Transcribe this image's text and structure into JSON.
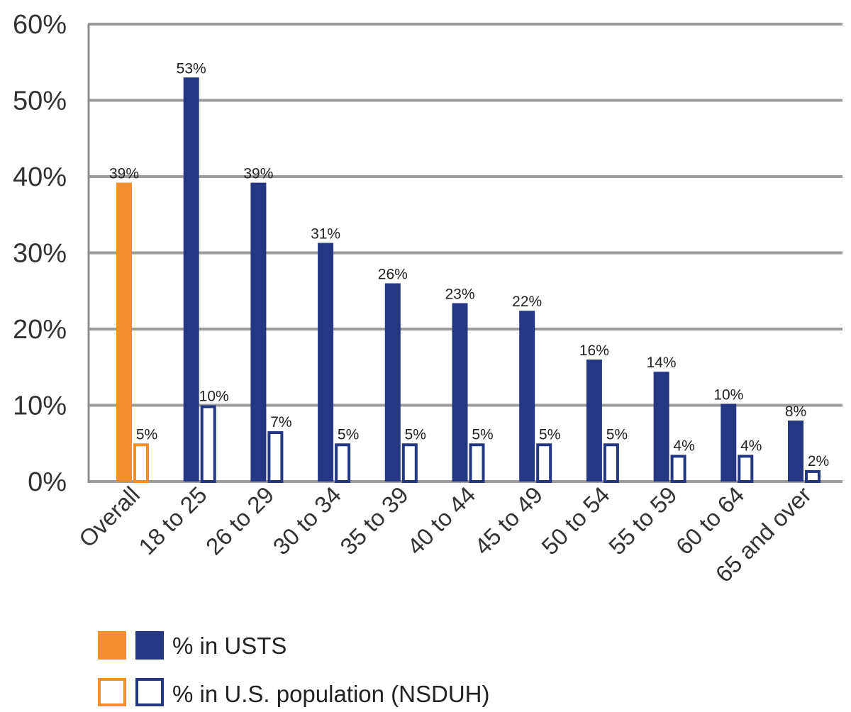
{
  "chart_data": {
    "type": "bar",
    "title": "",
    "xlabel": "",
    "ylabel": "",
    "ylim": [
      0,
      60
    ],
    "yticks": [
      "0%",
      "10%",
      "20%",
      "30%",
      "40%",
      "50%",
      "60%"
    ],
    "grid": true,
    "legend_position": "bottom-left",
    "categories": [
      "Overall",
      "18 to 25",
      "26 to 29",
      "30 to 34",
      "35 to 39",
      "40 to 44",
      "45 to 49",
      "50 to 54",
      "55 to 59",
      "60 to 64",
      "65 and over"
    ],
    "series": [
      {
        "name": "% in USTS",
        "values": [
          39.2,
          53,
          39.2,
          31.3,
          26,
          23.4,
          22.4,
          16,
          14.4,
          10.2,
          8
        ],
        "labels": [
          "39%",
          "53%",
          "39%",
          "31%",
          "26%",
          "23%",
          "22%",
          "16%",
          "14%",
          "10%",
          "8%"
        ],
        "style": "filled"
      },
      {
        "name": "% in U.S. population (NSDUH)",
        "values": [
          5,
          10,
          6.6,
          5,
          5,
          5,
          5,
          5,
          3.5,
          3.5,
          1.5
        ],
        "labels": [
          "5%",
          "10%",
          "7%",
          "5%",
          "5%",
          "5%",
          "5%",
          "5%",
          "4%",
          "4%",
          "2%"
        ],
        "style": "outline"
      }
    ],
    "colors": {
      "overall": "#F28E2B",
      "age_groups": "#243782",
      "grid": "#9d9b9c",
      "axis": "#8c8c8c"
    }
  }
}
